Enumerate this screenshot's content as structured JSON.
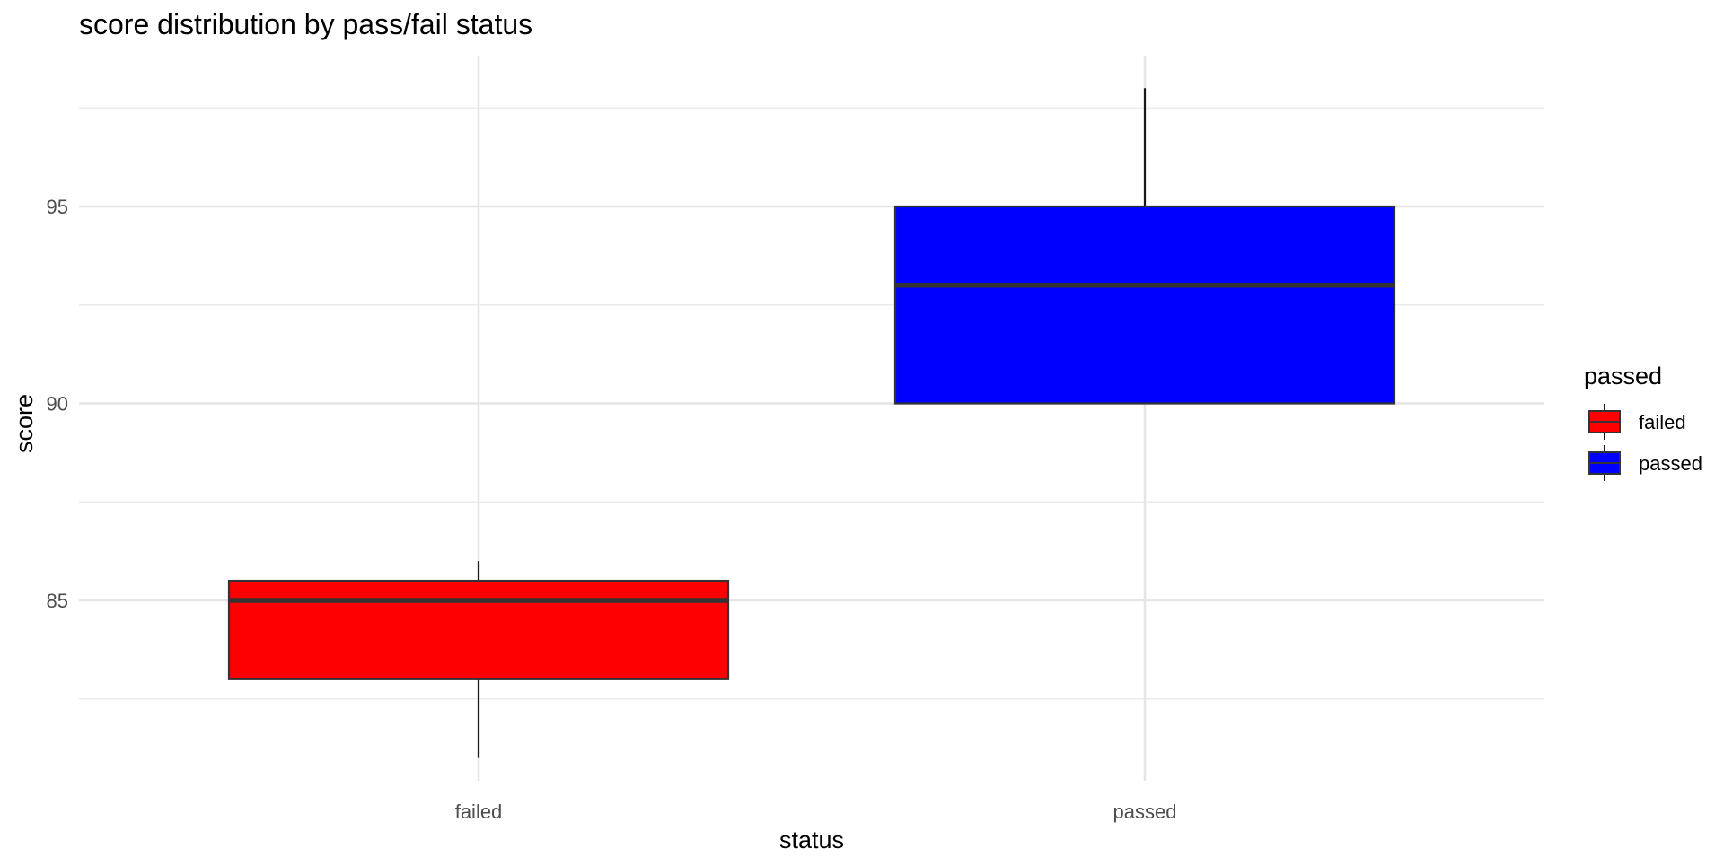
{
  "chart_data": {
    "type": "boxplot",
    "title": "score distribution by pass/fail status",
    "xlabel": "status",
    "ylabel": "score",
    "categories": [
      "failed",
      "passed"
    ],
    "ylim": [
      80,
      98.6
    ],
    "yticks": [
      85,
      90,
      95
    ],
    "grid": true,
    "legend": {
      "title": "passed",
      "position": "right",
      "entries": [
        {
          "label": "failed",
          "color": "#FF0000"
        },
        {
          "label": "passed",
          "color": "#0000FF"
        }
      ]
    },
    "series": [
      {
        "category": "failed",
        "whisker_low": 81,
        "q1": 83,
        "median": 85,
        "q3": 85.5,
        "whisker_high": 86,
        "color": "#FF0000"
      },
      {
        "category": "passed",
        "whisker_low": 90,
        "q1": 90,
        "median": 93,
        "q3": 95,
        "whisker_high": 98,
        "color": "#0000FF"
      }
    ]
  }
}
